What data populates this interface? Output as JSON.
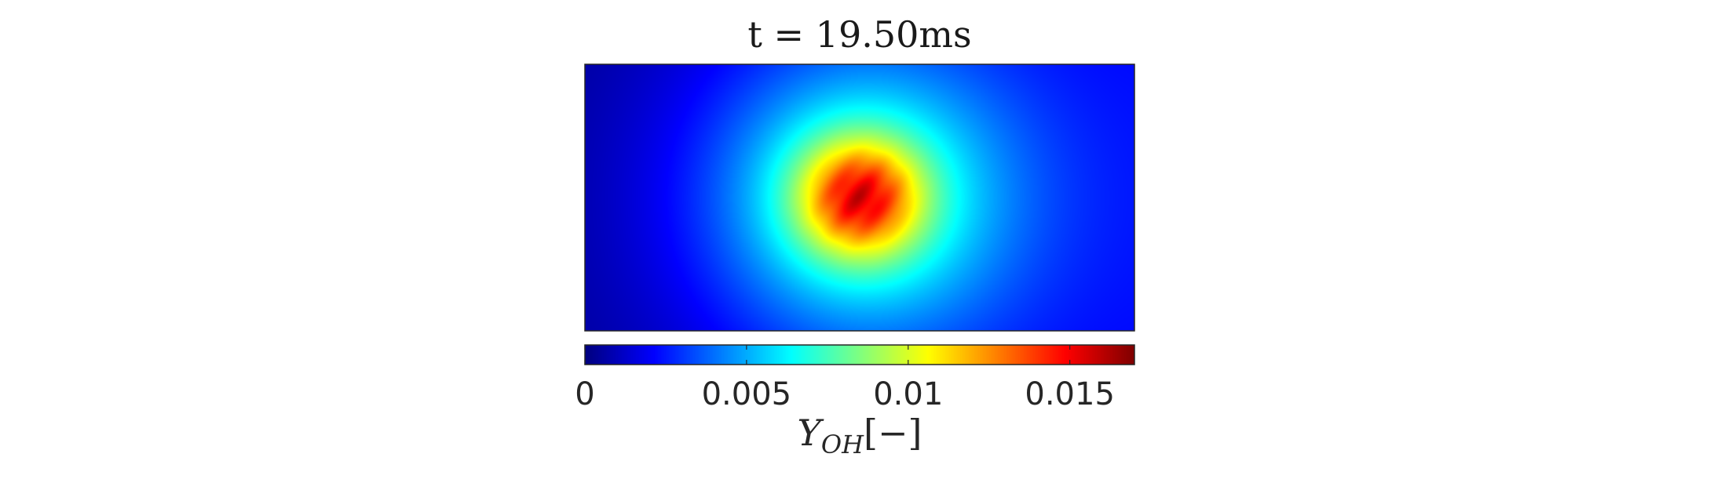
{
  "chart_data": {
    "type": "heatmap",
    "title": "t = 19.50ms",
    "colormap": "jet",
    "field": {
      "description": "OH mass fraction with a single hot kernel",
      "background_left": 0.0004,
      "background_right": 0.002,
      "peak_value": 0.0145,
      "peak_center_frac": [
        0.5,
        0.5
      ],
      "kernel_radius_frac": 0.11,
      "halo_radius_frac": 0.45
    },
    "colorbar": {
      "limits": [
        0,
        0.017
      ],
      "ticks": [
        0,
        0.005,
        0.01,
        0.015
      ],
      "tick_labels": [
        "0",
        "0.005",
        "0.01",
        "0.015"
      ],
      "label_main": "Y",
      "label_sub": "OH",
      "label_unit": "[−]"
    }
  }
}
